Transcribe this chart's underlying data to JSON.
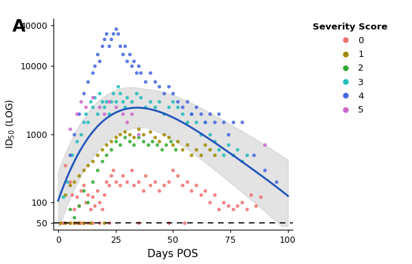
{
  "title_label": "A",
  "xlabel": "Days POS",
  "xlim": [
    -2,
    102
  ],
  "ylim_log": [
    40,
    50000
  ],
  "yticks": [
    50,
    100,
    1000,
    10000,
    40000
  ],
  "dashed_line_y": 50,
  "severity_colors": {
    "0": "#f07070",
    "1": "#a08800",
    "2": "#33aa33",
    "3": "#22bbbb",
    "4": "#4466dd",
    "5": "#cc66cc"
  },
  "curve_color": "#2255bb",
  "ci_color": "#bbbbbb",
  "background_color": "#ffffff",
  "scatter_data": {
    "0": [
      [
        1,
        50
      ],
      [
        2,
        50
      ],
      [
        3,
        50
      ],
      [
        5,
        50
      ],
      [
        7,
        50
      ],
      [
        8,
        50
      ],
      [
        9,
        50
      ],
      [
        10,
        50
      ],
      [
        11,
        50
      ],
      [
        13,
        50
      ],
      [
        15,
        50
      ],
      [
        18,
        50
      ],
      [
        22,
        50
      ],
      [
        35,
        50
      ],
      [
        48,
        50
      ],
      [
        55,
        50
      ],
      [
        3,
        350
      ],
      [
        5,
        200
      ],
      [
        6,
        130
      ],
      [
        7,
        80
      ],
      [
        8,
        120
      ],
      [
        9,
        90
      ],
      [
        10,
        150
      ],
      [
        11,
        180
      ],
      [
        12,
        100
      ],
      [
        13,
        130
      ],
      [
        14,
        80
      ],
      [
        15,
        120
      ],
      [
        16,
        90
      ],
      [
        17,
        150
      ],
      [
        18,
        100
      ],
      [
        19,
        80
      ],
      [
        20,
        130
      ],
      [
        21,
        200
      ],
      [
        22,
        180
      ],
      [
        23,
        250
      ],
      [
        24,
        300
      ],
      [
        25,
        200
      ],
      [
        27,
        180
      ],
      [
        28,
        250
      ],
      [
        30,
        200
      ],
      [
        32,
        300
      ],
      [
        33,
        180
      ],
      [
        35,
        200
      ],
      [
        37,
        150
      ],
      [
        38,
        250
      ],
      [
        40,
        180
      ],
      [
        42,
        200
      ],
      [
        44,
        150
      ],
      [
        46,
        180
      ],
      [
        48,
        200
      ],
      [
        50,
        300
      ],
      [
        52,
        250
      ],
      [
        54,
        180
      ],
      [
        56,
        200
      ],
      [
        58,
        150
      ],
      [
        60,
        180
      ],
      [
        62,
        130
      ],
      [
        64,
        150
      ],
      [
        66,
        100
      ],
      [
        68,
        130
      ],
      [
        70,
        80
      ],
      [
        72,
        100
      ],
      [
        74,
        90
      ],
      [
        76,
        80
      ],
      [
        78,
        90
      ],
      [
        80,
        100
      ],
      [
        82,
        80
      ],
      [
        84,
        130
      ],
      [
        86,
        90
      ],
      [
        88,
        120
      ]
    ],
    "1": [
      [
        1,
        50
      ],
      [
        3,
        50
      ],
      [
        5,
        50
      ],
      [
        7,
        50
      ],
      [
        9,
        50
      ],
      [
        11,
        50
      ],
      [
        14,
        50
      ],
      [
        20,
        50
      ],
      [
        3,
        130
      ],
      [
        5,
        180
      ],
      [
        7,
        200
      ],
      [
        9,
        250
      ],
      [
        11,
        300
      ],
      [
        13,
        350
      ],
      [
        15,
        400
      ],
      [
        17,
        500
      ],
      [
        19,
        600
      ],
      [
        21,
        700
      ],
      [
        23,
        800
      ],
      [
        25,
        900
      ],
      [
        27,
        1000
      ],
      [
        29,
        1100
      ],
      [
        31,
        1000
      ],
      [
        33,
        900
      ],
      [
        35,
        1200
      ],
      [
        37,
        1000
      ],
      [
        40,
        1100
      ],
      [
        42,
        900
      ],
      [
        44,
        800
      ],
      [
        46,
        1000
      ],
      [
        48,
        900
      ],
      [
        50,
        700
      ],
      [
        52,
        800
      ],
      [
        54,
        600
      ],
      [
        56,
        700
      ],
      [
        58,
        500
      ],
      [
        60,
        600
      ],
      [
        62,
        500
      ],
      [
        64,
        700
      ],
      [
        66,
        600
      ],
      [
        68,
        500
      ]
    ],
    "2": [
      [
        5,
        80
      ],
      [
        7,
        60
      ],
      [
        9,
        90
      ],
      [
        11,
        150
      ],
      [
        13,
        100
      ],
      [
        15,
        200
      ],
      [
        17,
        300
      ],
      [
        19,
        400
      ],
      [
        21,
        500
      ],
      [
        23,
        600
      ],
      [
        25,
        800
      ],
      [
        27,
        700
      ],
      [
        29,
        900
      ],
      [
        31,
        800
      ],
      [
        33,
        700
      ],
      [
        35,
        900
      ],
      [
        37,
        800
      ],
      [
        39,
        700
      ],
      [
        41,
        800
      ],
      [
        43,
        700
      ],
      [
        45,
        600
      ],
      [
        47,
        700
      ],
      [
        49,
        800
      ],
      [
        51,
        600
      ]
    ],
    "3": [
      [
        2,
        120
      ],
      [
        4,
        200
      ],
      [
        6,
        500
      ],
      [
        8,
        800
      ],
      [
        10,
        1000
      ],
      [
        11,
        1500
      ],
      [
        12,
        2000
      ],
      [
        13,
        1500
      ],
      [
        14,
        3000
      ],
      [
        15,
        2500
      ],
      [
        16,
        3500
      ],
      [
        17,
        2000
      ],
      [
        18,
        4000
      ],
      [
        19,
        3000
      ],
      [
        20,
        2500
      ],
      [
        21,
        3000
      ],
      [
        22,
        2000
      ],
      [
        23,
        3000
      ],
      [
        24,
        4000
      ],
      [
        25,
        3000
      ],
      [
        26,
        5000
      ],
      [
        27,
        4000
      ],
      [
        28,
        3000
      ],
      [
        29,
        2500
      ],
      [
        30,
        3500
      ],
      [
        32,
        3000
      ],
      [
        34,
        4000
      ],
      [
        36,
        3500
      ],
      [
        38,
        2500
      ],
      [
        40,
        3000
      ],
      [
        42,
        2500
      ],
      [
        44,
        3000
      ],
      [
        46,
        2000
      ],
      [
        48,
        2500
      ],
      [
        50,
        3000
      ],
      [
        52,
        2500
      ],
      [
        54,
        2000
      ],
      [
        56,
        1500
      ],
      [
        58,
        2000
      ],
      [
        60,
        1500
      ],
      [
        62,
        1000
      ],
      [
        64,
        1500
      ],
      [
        66,
        1000
      ],
      [
        68,
        800
      ],
      [
        70,
        600
      ],
      [
        72,
        500
      ],
      [
        74,
        700
      ],
      [
        76,
        500
      ],
      [
        78,
        600
      ],
      [
        80,
        400
      ],
      [
        82,
        500
      ]
    ],
    "4": [
      [
        5,
        500
      ],
      [
        7,
        1000
      ],
      [
        9,
        2000
      ],
      [
        11,
        4000
      ],
      [
        13,
        6000
      ],
      [
        15,
        8000
      ],
      [
        16,
        10000
      ],
      [
        17,
        15000
      ],
      [
        18,
        12000
      ],
      [
        19,
        20000
      ],
      [
        20,
        25000
      ],
      [
        21,
        30000
      ],
      [
        22,
        20000
      ],
      [
        23,
        25000
      ],
      [
        24,
        30000
      ],
      [
        25,
        35000
      ],
      [
        26,
        30000
      ],
      [
        27,
        20000
      ],
      [
        28,
        15000
      ],
      [
        29,
        20000
      ],
      [
        30,
        12000
      ],
      [
        31,
        15000
      ],
      [
        32,
        10000
      ],
      [
        33,
        12000
      ],
      [
        34,
        8000
      ],
      [
        35,
        10000
      ],
      [
        36,
        8000
      ],
      [
        38,
        6000
      ],
      [
        40,
        8000
      ],
      [
        42,
        6000
      ],
      [
        44,
        5000
      ],
      [
        46,
        4000
      ],
      [
        48,
        5000
      ],
      [
        50,
        4000
      ],
      [
        52,
        3000
      ],
      [
        54,
        2500
      ],
      [
        56,
        3000
      ],
      [
        58,
        2000
      ],
      [
        60,
        2500
      ],
      [
        62,
        2000
      ],
      [
        64,
        1500
      ],
      [
        66,
        2000
      ],
      [
        68,
        1500
      ],
      [
        70,
        2000
      ],
      [
        72,
        1500
      ],
      [
        74,
        1000
      ],
      [
        76,
        1500
      ],
      [
        80,
        1500
      ],
      [
        85,
        500
      ],
      [
        90,
        300
      ],
      [
        95,
        200
      ]
    ],
    "5": [
      [
        5,
        1200
      ],
      [
        8,
        2000
      ],
      [
        10,
        3000
      ],
      [
        12,
        2500
      ],
      [
        15,
        3500
      ],
      [
        18,
        2500
      ],
      [
        20,
        2000
      ],
      [
        22,
        3000
      ],
      [
        25,
        2500
      ],
      [
        28,
        2000
      ],
      [
        30,
        1500
      ],
      [
        32,
        2000
      ],
      [
        35,
        1000
      ],
      [
        90,
        700
      ]
    ]
  },
  "legend_title": "Severity Score",
  "legend_scores": [
    "0",
    "1",
    "2",
    "3",
    "4",
    "5"
  ],
  "curve_peak_x": 38,
  "curve_peak_logy": 3.35,
  "curve_start_logy": 2.0,
  "curve_end_logy": 2.1,
  "curve_start_x": 0,
  "curve_end_x": 100
}
